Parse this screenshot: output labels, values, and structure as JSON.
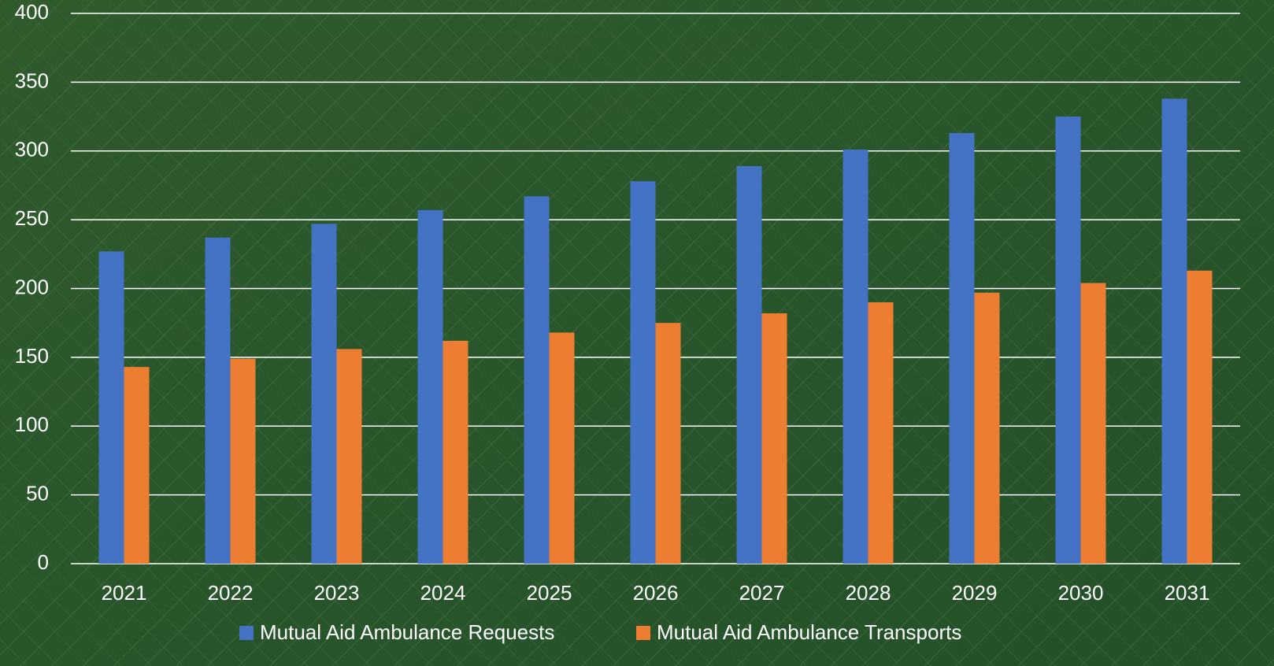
{
  "chart_data": {
    "type": "bar",
    "categories": [
      "2021",
      "2022",
      "2023",
      "2024",
      "2025",
      "2026",
      "2027",
      "2028",
      "2029",
      "2030",
      "2031"
    ],
    "series": [
      {
        "name": "Mutual Aid Ambulance Requests",
        "color": "#4472c4",
        "values": [
          227,
          237,
          247,
          257,
          267,
          278,
          289,
          301,
          313,
          325,
          338
        ]
      },
      {
        "name": "Mutual Aid Ambulance Transports",
        "color": "#ed7d31",
        "values": [
          143,
          149,
          156,
          162,
          168,
          175,
          182,
          190,
          197,
          204,
          213
        ]
      }
    ],
    "ylim": [
      0,
      400
    ],
    "yticks": [
      0,
      50,
      100,
      150,
      200,
      250,
      300,
      350,
      400
    ],
    "grid": true,
    "legend": "bottom"
  }
}
